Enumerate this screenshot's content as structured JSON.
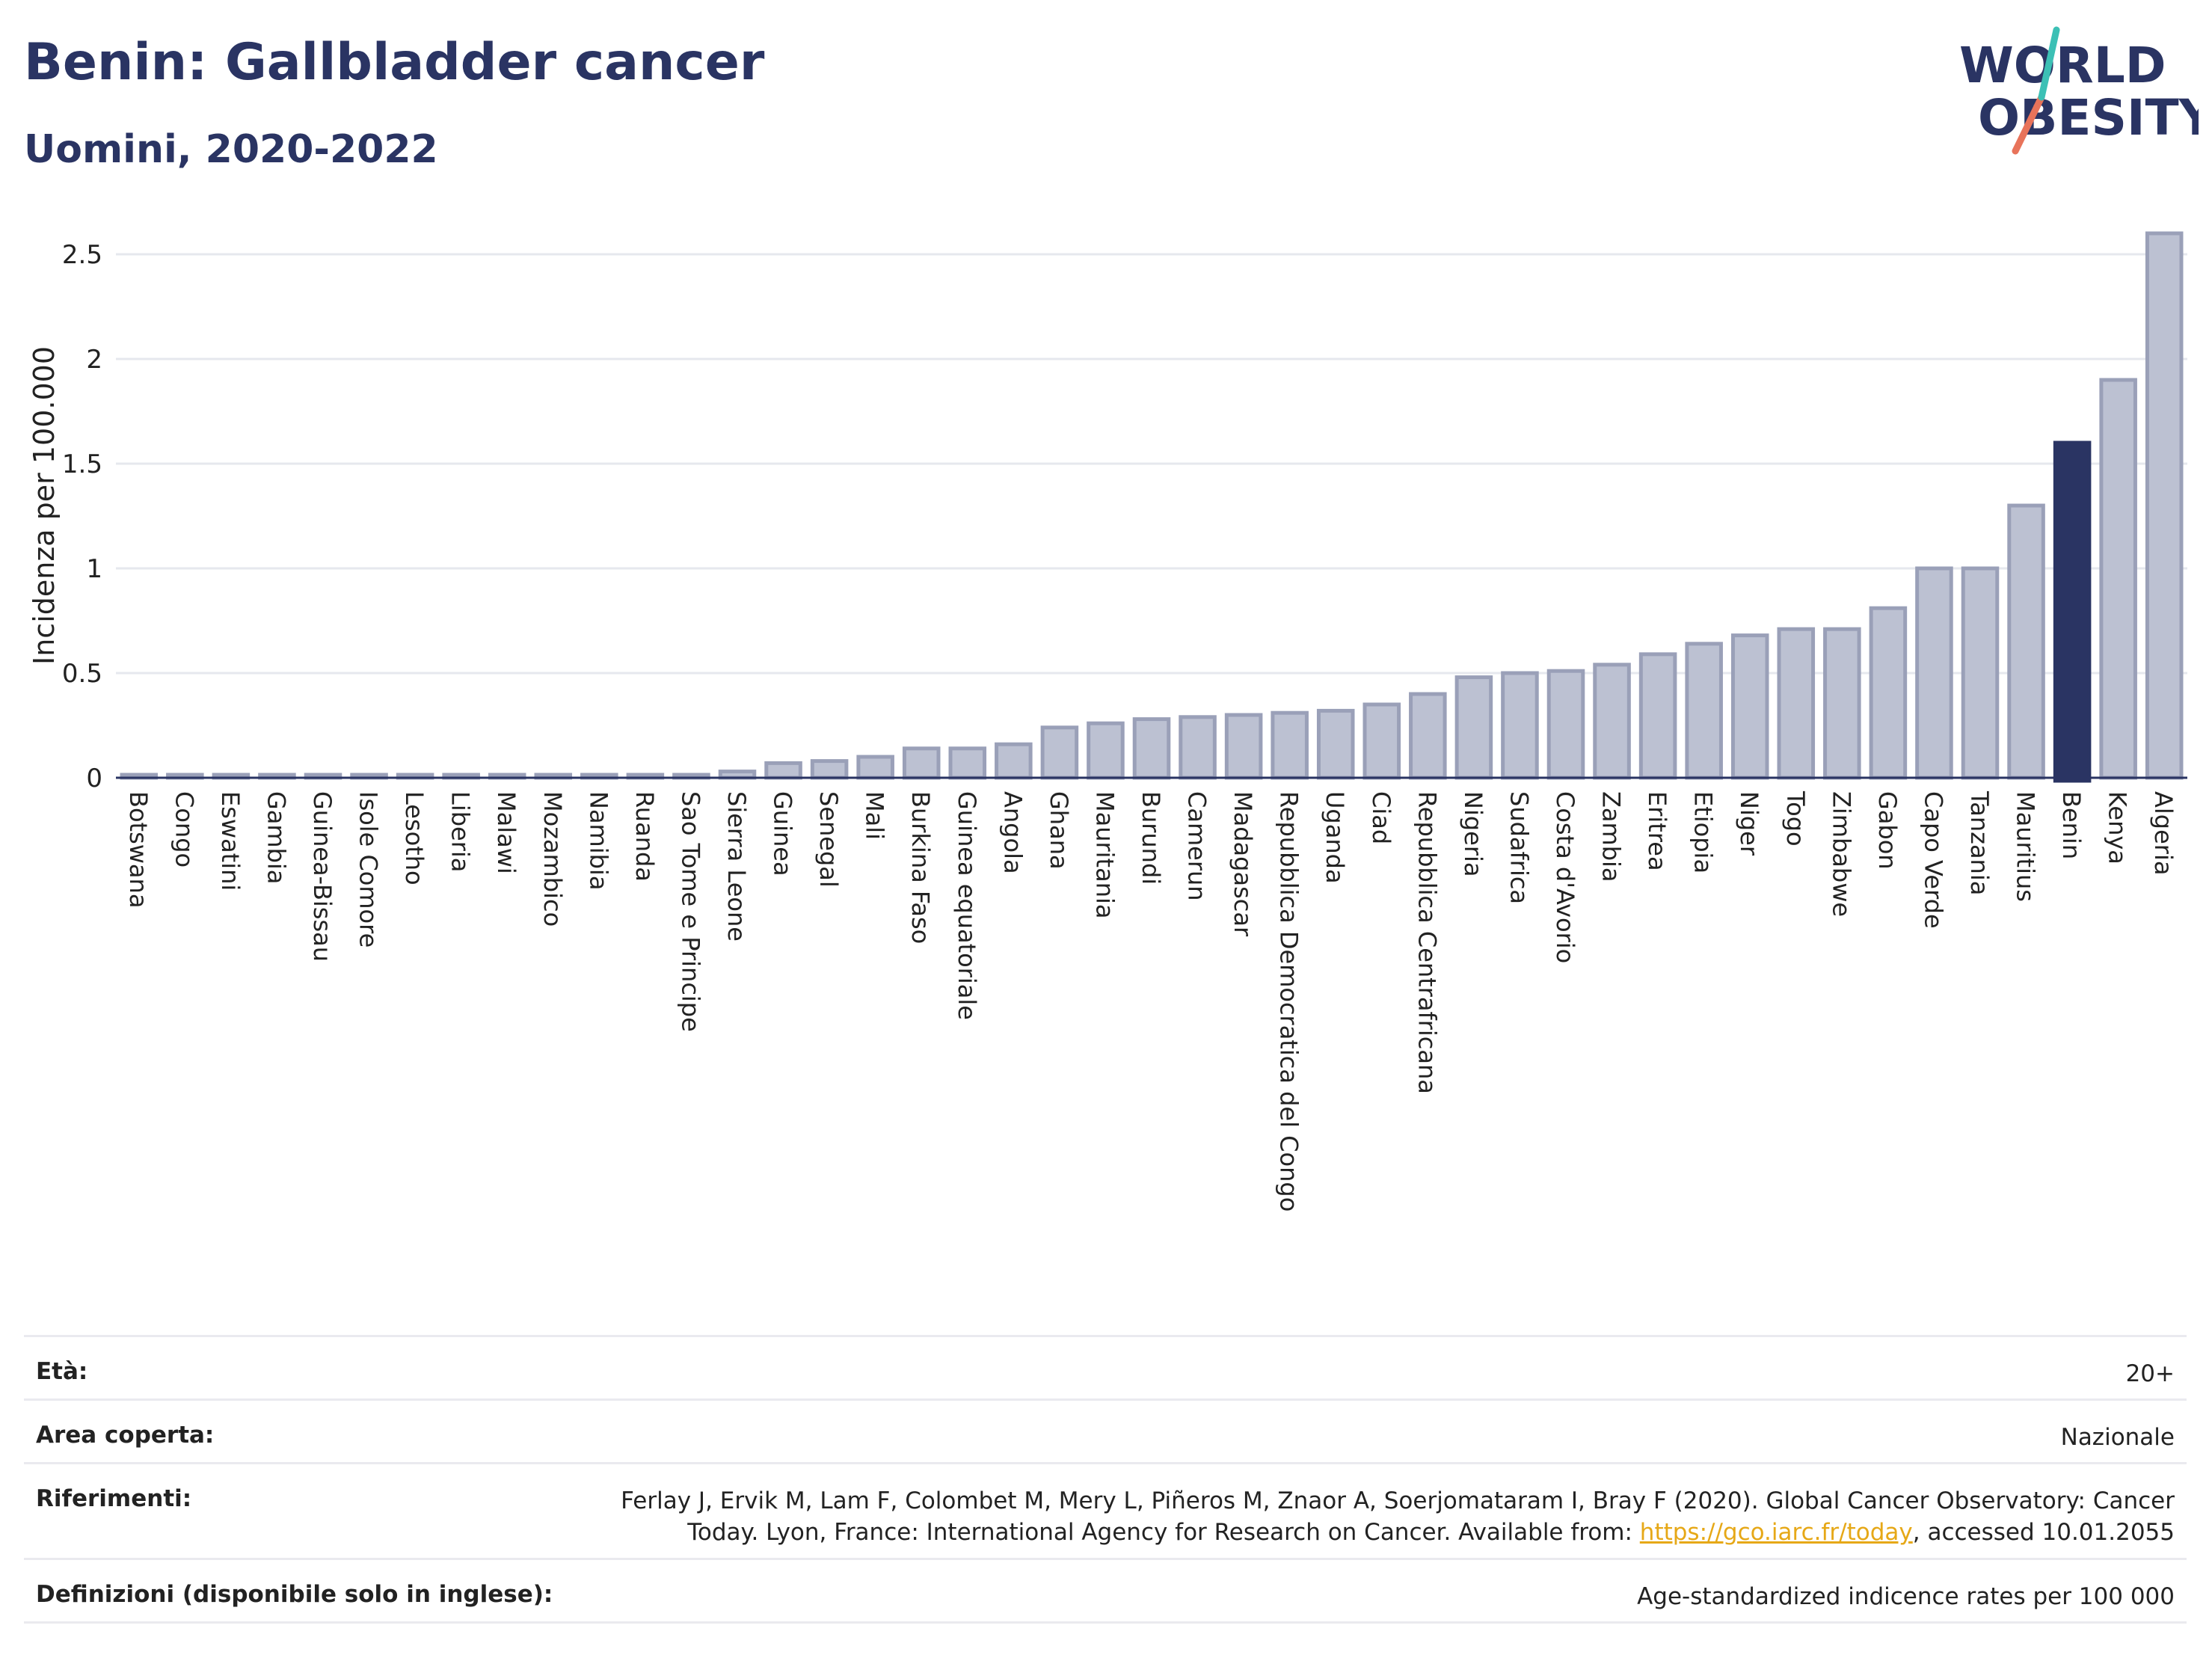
{
  "header": {
    "title": "Benin: Gallbladder cancer",
    "subtitle": "Uomini, 2020-2022"
  },
  "logo": {
    "line1": "WORLD",
    "line2": "OBESITY"
  },
  "chart_data": {
    "type": "bar",
    "ylabel": "Incidenza per 100.000",
    "xlabel": "",
    "ylim": [
      0,
      2.6
    ],
    "yticks": [
      0,
      0.5,
      1,
      1.5,
      2,
      2.5
    ],
    "ytick_labels": [
      "0",
      "0.5",
      "1",
      "1.5",
      "2",
      "2.5"
    ],
    "grid": "horizontal",
    "highlight": "Benin",
    "colors": {
      "bar": "#bcc1d2",
      "bar_border": "#9aa0b8",
      "highlight": "#2a3463",
      "grid": "#e6e8ee"
    },
    "categories": [
      "Botswana",
      "Congo",
      "Eswatini",
      "Gambia",
      "Guinea-Bissau",
      "Isole Comore",
      "Lesotho",
      "Liberia",
      "Malawi",
      "Mozambico",
      "Namibia",
      "Ruanda",
      "Sao Tome e Principe",
      "Sierra Leone",
      "Guinea",
      "Senegal",
      "Mali",
      "Burkina Faso",
      "Guinea equatoriale",
      "Angola",
      "Ghana",
      "Mauritania",
      "Burundi",
      "Camerun",
      "Madagascar",
      "Repubblica Democratica del Congo",
      "Uganda",
      "Ciad",
      "Repubblica Centrafricana",
      "Nigeria",
      "Sudafrica",
      "Costa d'Avorio",
      "Zambia",
      "Eritrea",
      "Etiopia",
      "Niger",
      "Togo",
      "Zimbabwe",
      "Gabon",
      "Capo Verde",
      "Tanzania",
      "Mauritius",
      "Benin",
      "Kenya",
      "Algeria"
    ],
    "values": [
      0.01,
      0.01,
      0.01,
      0.01,
      0.01,
      0.01,
      0.01,
      0.01,
      0.01,
      0.01,
      0.01,
      0.01,
      0.01,
      0.03,
      0.07,
      0.08,
      0.1,
      0.14,
      0.14,
      0.16,
      0.24,
      0.26,
      0.28,
      0.29,
      0.3,
      0.31,
      0.32,
      0.35,
      0.4,
      0.48,
      0.5,
      0.51,
      0.54,
      0.59,
      0.64,
      0.68,
      0.71,
      0.71,
      0.81,
      1.0,
      1.0,
      1.3,
      1.6,
      1.9,
      2.6
    ]
  },
  "table": {
    "age_label": "Età:",
    "age_value": "20+",
    "area_label": "Area coperta:",
    "area_value": "Nazionale",
    "ref_label": "Riferimenti:",
    "ref_line1": "Ferlay J, Ervik M, Lam F, Colombet M, Mery L, Piñeros M, Znaor A, Soerjomataram I, Bray F (2020). Global Cancer Observatory: Cancer",
    "ref_line2_pre": "Today. Lyon, France: International Agency for Research on Cancer. Available from: ",
    "ref_link": "https://gco.iarc.fr/today",
    "ref_line2_post": ", accessed 10.01.2055",
    "def_label": "Definizioni (disponibile solo in inglese):",
    "def_value": "Age-standardized indicence rates per 100 000"
  }
}
